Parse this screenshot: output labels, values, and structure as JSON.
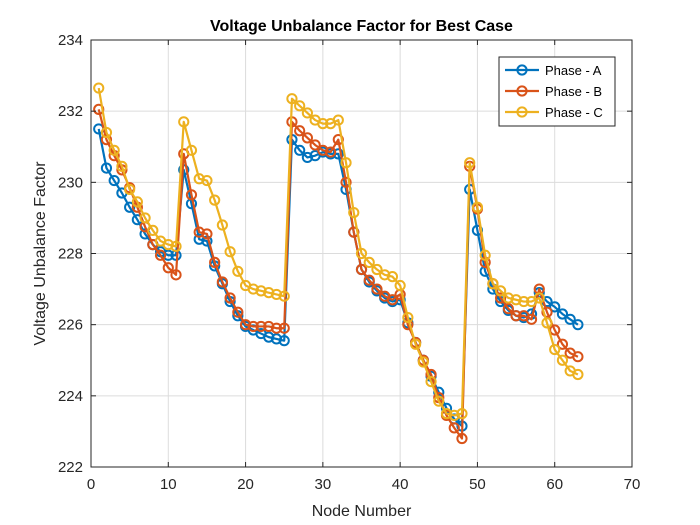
{
  "chart_data": {
    "type": "line",
    "title": "Voltage Unbalance Factor for Best Case",
    "xlabel": "Node Number",
    "ylabel": "Voltage Unbalance Factor",
    "xlim": [
      0,
      70
    ],
    "ylim": [
      222,
      234
    ],
    "xticks": [
      0,
      10,
      20,
      30,
      40,
      50,
      60,
      70
    ],
    "yticks": [
      222,
      224,
      226,
      228,
      230,
      232,
      234
    ],
    "grid": true,
    "legend_position": "top-right",
    "x": [
      1,
      2,
      3,
      4,
      5,
      6,
      7,
      8,
      9,
      10,
      11,
      12,
      13,
      14,
      15,
      16,
      17,
      18,
      19,
      20,
      21,
      22,
      23,
      24,
      25,
      26,
      27,
      28,
      29,
      30,
      31,
      32,
      33,
      34,
      35,
      36,
      37,
      38,
      39,
      40,
      41,
      42,
      43,
      44,
      45,
      46,
      47,
      48,
      49,
      50,
      51,
      52,
      53,
      54,
      55,
      56,
      57,
      58,
      59,
      60,
      61,
      62,
      63
    ],
    "series": [
      {
        "name": "Phase - A",
        "color": "#0072BD",
        "values": [
          231.5,
          230.4,
          230.05,
          229.7,
          229.3,
          228.95,
          228.55,
          228.25,
          228.05,
          227.95,
          227.95,
          230.35,
          229.4,
          228.4,
          228.35,
          227.65,
          227.15,
          226.65,
          226.25,
          225.95,
          225.85,
          225.75,
          225.65,
          225.6,
          225.55,
          231.2,
          230.9,
          230.7,
          230.75,
          230.85,
          230.8,
          230.8,
          229.8,
          228.6,
          227.55,
          227.2,
          226.95,
          226.75,
          226.65,
          226.7,
          226.05,
          225.5,
          225.0,
          224.55,
          224.1,
          223.65,
          223.35,
          223.15,
          229.8,
          228.65,
          227.5,
          227.0,
          226.65,
          226.4,
          226.25,
          226.2,
          226.3,
          226.9,
          226.65,
          226.5,
          226.3,
          226.15,
          226.0
        ]
      },
      {
        "name": "Phase - B",
        "color": "#D95319",
        "values": [
          232.05,
          231.2,
          230.75,
          230.35,
          229.85,
          229.3,
          228.75,
          228.25,
          227.95,
          227.6,
          227.4,
          230.8,
          229.65,
          228.6,
          228.55,
          227.75,
          227.2,
          226.75,
          226.35,
          226.0,
          225.95,
          225.95,
          225.95,
          225.9,
          225.9,
          231.7,
          231.45,
          231.25,
          231.05,
          230.9,
          230.85,
          231.2,
          230.0,
          228.6,
          227.55,
          227.25,
          227.0,
          226.8,
          226.7,
          226.85,
          226.0,
          225.5,
          225.0,
          224.6,
          223.95,
          223.45,
          223.1,
          222.8,
          230.45,
          229.25,
          227.75,
          227.15,
          226.75,
          226.45,
          226.25,
          226.25,
          226.15,
          227.0,
          226.35,
          225.85,
          225.45,
          225.2,
          225.1
        ]
      },
      {
        "name": "Phase - C",
        "color": "#EDB120",
        "values": [
          232.65,
          231.4,
          230.9,
          230.45,
          229.8,
          229.45,
          229.0,
          228.65,
          228.35,
          228.25,
          228.2,
          231.7,
          230.9,
          230.1,
          230.05,
          229.5,
          228.8,
          228.05,
          227.5,
          227.1,
          227.0,
          226.95,
          226.9,
          226.85,
          226.8,
          232.35,
          232.15,
          231.95,
          231.75,
          231.65,
          231.65,
          231.75,
          230.55,
          229.15,
          228.0,
          227.75,
          227.55,
          227.4,
          227.35,
          227.1,
          226.2,
          225.45,
          224.95,
          224.4,
          223.85,
          223.5,
          223.45,
          223.5,
          230.55,
          229.3,
          227.95,
          227.15,
          226.95,
          226.75,
          226.7,
          226.65,
          226.65,
          226.75,
          226.05,
          225.3,
          225.0,
          224.7,
          224.6
        ]
      }
    ]
  }
}
